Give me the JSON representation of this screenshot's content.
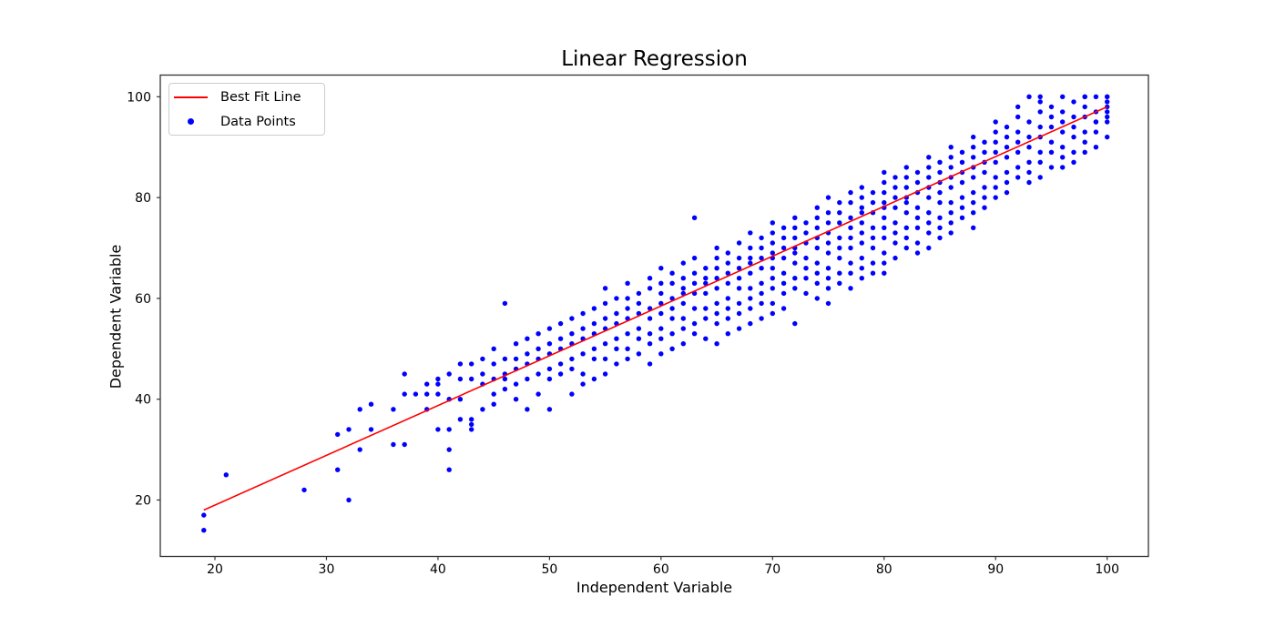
{
  "chart_data": {
    "type": "scatter",
    "title": "Linear Regression",
    "xlabel": "Independent Variable",
    "ylabel": "Dependent Variable",
    "xlim": [
      15.1,
      103.7
    ],
    "ylim": [
      8.8,
      104.3
    ],
    "x_ticks": [
      20,
      30,
      40,
      50,
      60,
      70,
      80,
      90,
      100
    ],
    "y_ticks": [
      20,
      40,
      60,
      80,
      100
    ],
    "grid": false,
    "legend_position": "upper-left",
    "legend": [
      {
        "label": "Best Fit Line",
        "type": "line",
        "color": "#ff0000"
      },
      {
        "label": "Data Points",
        "type": "point",
        "color": "#0000ff"
      }
    ],
    "fit_line": {
      "x1": 19,
      "y1": 18,
      "x2": 100,
      "y2": 98,
      "color": "#ff0000"
    },
    "point_color": "#0000ff",
    "axis_color": "#333333",
    "text_color": "#000000",
    "columns": [
      {
        "x": 19,
        "ys": [
          17,
          14
        ]
      },
      {
        "x": 21,
        "ys": [
          25
        ]
      },
      {
        "x": 28,
        "ys": [
          22
        ]
      },
      {
        "x": 31,
        "ys": [
          33,
          26
        ]
      },
      {
        "x": 32,
        "ys": [
          34,
          20
        ]
      },
      {
        "x": 33,
        "ys": [
          38,
          30
        ]
      },
      {
        "x": 34,
        "ys": [
          39,
          34
        ]
      },
      {
        "x": 36,
        "ys": [
          38,
          31
        ]
      },
      {
        "x": 37,
        "ys": [
          45,
          41,
          31
        ]
      },
      {
        "x": 38,
        "ys": [
          41
        ]
      },
      {
        "x": 39,
        "ys": [
          43,
          41,
          38
        ]
      },
      {
        "x": 40,
        "ys": [
          44,
          43,
          41,
          34
        ]
      },
      {
        "x": 41,
        "ys": [
          45,
          40,
          34,
          30,
          26
        ]
      },
      {
        "x": 42,
        "ys": [
          47,
          44,
          40,
          36
        ]
      },
      {
        "x": 43,
        "ys": [
          47,
          44,
          36,
          35,
          34
        ]
      },
      {
        "x": 44,
        "ys": [
          48,
          45,
          43,
          38
        ]
      },
      {
        "x": 45,
        "ys": [
          50,
          47,
          44,
          41,
          39
        ]
      },
      {
        "x": 46,
        "ys": [
          59,
          48,
          45,
          44,
          42
        ]
      },
      {
        "x": 47,
        "ys": [
          51,
          48,
          46,
          43,
          40
        ]
      },
      {
        "x": 48,
        "ys": [
          52,
          49,
          47,
          44,
          38
        ]
      },
      {
        "x": 49,
        "ys": [
          53,
          50,
          48,
          45,
          41
        ]
      },
      {
        "x": 50,
        "ys": [
          54,
          51,
          49,
          46,
          44,
          38
        ]
      },
      {
        "x": 51,
        "ys": [
          55,
          52,
          50,
          47,
          45
        ]
      },
      {
        "x": 52,
        "ys": [
          56,
          53,
          51,
          48,
          46,
          41
        ]
      },
      {
        "x": 53,
        "ys": [
          57,
          54,
          52,
          49,
          45,
          43
        ]
      },
      {
        "x": 54,
        "ys": [
          58,
          55,
          53,
          50,
          48,
          44
        ]
      },
      {
        "x": 55,
        "ys": [
          62,
          59,
          56,
          54,
          51,
          48,
          45
        ]
      },
      {
        "x": 56,
        "ys": [
          60,
          57,
          55,
          52,
          50,
          47
        ]
      },
      {
        "x": 57,
        "ys": [
          63,
          60,
          58,
          56,
          53,
          50,
          48
        ]
      },
      {
        "x": 58,
        "ys": [
          61,
          59,
          57,
          54,
          52,
          49
        ]
      },
      {
        "x": 59,
        "ys": [
          64,
          62,
          58,
          56,
          53,
          51,
          47
        ]
      },
      {
        "x": 60,
        "ys": [
          66,
          63,
          61,
          59,
          57,
          54,
          52,
          49
        ]
      },
      {
        "x": 61,
        "ys": [
          65,
          63,
          60,
          58,
          56,
          53,
          50
        ]
      },
      {
        "x": 62,
        "ys": [
          67,
          64,
          62,
          61,
          59,
          56,
          54,
          51
        ]
      },
      {
        "x": 63,
        "ys": [
          76,
          68,
          65,
          63,
          61,
          58,
          55,
          53
        ]
      },
      {
        "x": 64,
        "ys": [
          66,
          64,
          63,
          61,
          58,
          56,
          52
        ]
      },
      {
        "x": 65,
        "ys": [
          70,
          68,
          66,
          64,
          62,
          59,
          57,
          55,
          51
        ]
      },
      {
        "x": 66,
        "ys": [
          69,
          67,
          65,
          63,
          60,
          58,
          56,
          53
        ]
      },
      {
        "x": 67,
        "ys": [
          71,
          68,
          66,
          64,
          62,
          59,
          57,
          54
        ]
      },
      {
        "x": 68,
        "ys": [
          73,
          70,
          68,
          67,
          65,
          62,
          60,
          58,
          55
        ]
      },
      {
        "x": 69,
        "ys": [
          72,
          70,
          68,
          66,
          63,
          61,
          59,
          56
        ]
      },
      {
        "x": 70,
        "ys": [
          75,
          73,
          71,
          69,
          68,
          66,
          64,
          62,
          59,
          57
        ]
      },
      {
        "x": 71,
        "ys": [
          74,
          72,
          70,
          68,
          65,
          63,
          61,
          58
        ]
      },
      {
        "x": 72,
        "ys": [
          76,
          74,
          72,
          70,
          69,
          67,
          64,
          62,
          55
        ]
      },
      {
        "x": 73,
        "ys": [
          75,
          73,
          71,
          68,
          66,
          64,
          61
        ]
      },
      {
        "x": 74,
        "ys": [
          78,
          76,
          74,
          72,
          70,
          67,
          65,
          63,
          60
        ]
      },
      {
        "x": 75,
        "ys": [
          80,
          77,
          75,
          73,
          71,
          69,
          66,
          64,
          62,
          59
        ]
      },
      {
        "x": 76,
        "ys": [
          79,
          77,
          75,
          72,
          70,
          68,
          65,
          63
        ]
      },
      {
        "x": 77,
        "ys": [
          81,
          79,
          76,
          74,
          72,
          70,
          67,
          65,
          62
        ]
      },
      {
        "x": 78,
        "ys": [
          82,
          80,
          78,
          77,
          75,
          73,
          71,
          68,
          66,
          64
        ]
      },
      {
        "x": 79,
        "ys": [
          81,
          79,
          77,
          74,
          72,
          70,
          67,
          65
        ]
      },
      {
        "x": 80,
        "ys": [
          85,
          83,
          81,
          79,
          78,
          76,
          74,
          72,
          69,
          67,
          65
        ]
      },
      {
        "x": 81,
        "ys": [
          84,
          82,
          80,
          78,
          75,
          73,
          71,
          68
        ]
      },
      {
        "x": 82,
        "ys": [
          86,
          84,
          82,
          80,
          79,
          77,
          74,
          72,
          70
        ]
      },
      {
        "x": 83,
        "ys": [
          85,
          83,
          81,
          78,
          76,
          74,
          71,
          69
        ]
      },
      {
        "x": 84,
        "ys": [
          88,
          86,
          84,
          82,
          80,
          77,
          75,
          73,
          70
        ]
      },
      {
        "x": 85,
        "ys": [
          87,
          85,
          83,
          81,
          79,
          76,
          74,
          72
        ]
      },
      {
        "x": 86,
        "ys": [
          90,
          88,
          86,
          84,
          82,
          79,
          77,
          75,
          73
        ]
      },
      {
        "x": 87,
        "ys": [
          89,
          87,
          85,
          83,
          80,
          78,
          76
        ]
      },
      {
        "x": 88,
        "ys": [
          92,
          90,
          88,
          86,
          84,
          81,
          79,
          77,
          74
        ]
      },
      {
        "x": 89,
        "ys": [
          91,
          89,
          87,
          85,
          82,
          80,
          78
        ]
      },
      {
        "x": 90,
        "ys": [
          95,
          93,
          91,
          89,
          87,
          84,
          82,
          80
        ]
      },
      {
        "x": 91,
        "ys": [
          94,
          92,
          90,
          88,
          85,
          83,
          81
        ]
      },
      {
        "x": 92,
        "ys": [
          98,
          96,
          93,
          91,
          89,
          86,
          84
        ]
      },
      {
        "x": 93,
        "ys": [
          100,
          95,
          92,
          90,
          87,
          85,
          83
        ]
      },
      {
        "x": 94,
        "ys": [
          100,
          99,
          97,
          94,
          92,
          89,
          87,
          84
        ]
      },
      {
        "x": 95,
        "ys": [
          98,
          96,
          94,
          91,
          89,
          86
        ]
      },
      {
        "x": 96,
        "ys": [
          100,
          97,
          95,
          93,
          90,
          88,
          86
        ]
      },
      {
        "x": 97,
        "ys": [
          99,
          96,
          94,
          92,
          89,
          87
        ]
      },
      {
        "x": 98,
        "ys": [
          100,
          100,
          98,
          96,
          93,
          91,
          89
        ]
      },
      {
        "x": 99,
        "ys": [
          100,
          97,
          95,
          95,
          93,
          90
        ]
      },
      {
        "x": 100,
        "ys": [
          100,
          100,
          99,
          98,
          97,
          96,
          95,
          92
        ]
      }
    ]
  }
}
